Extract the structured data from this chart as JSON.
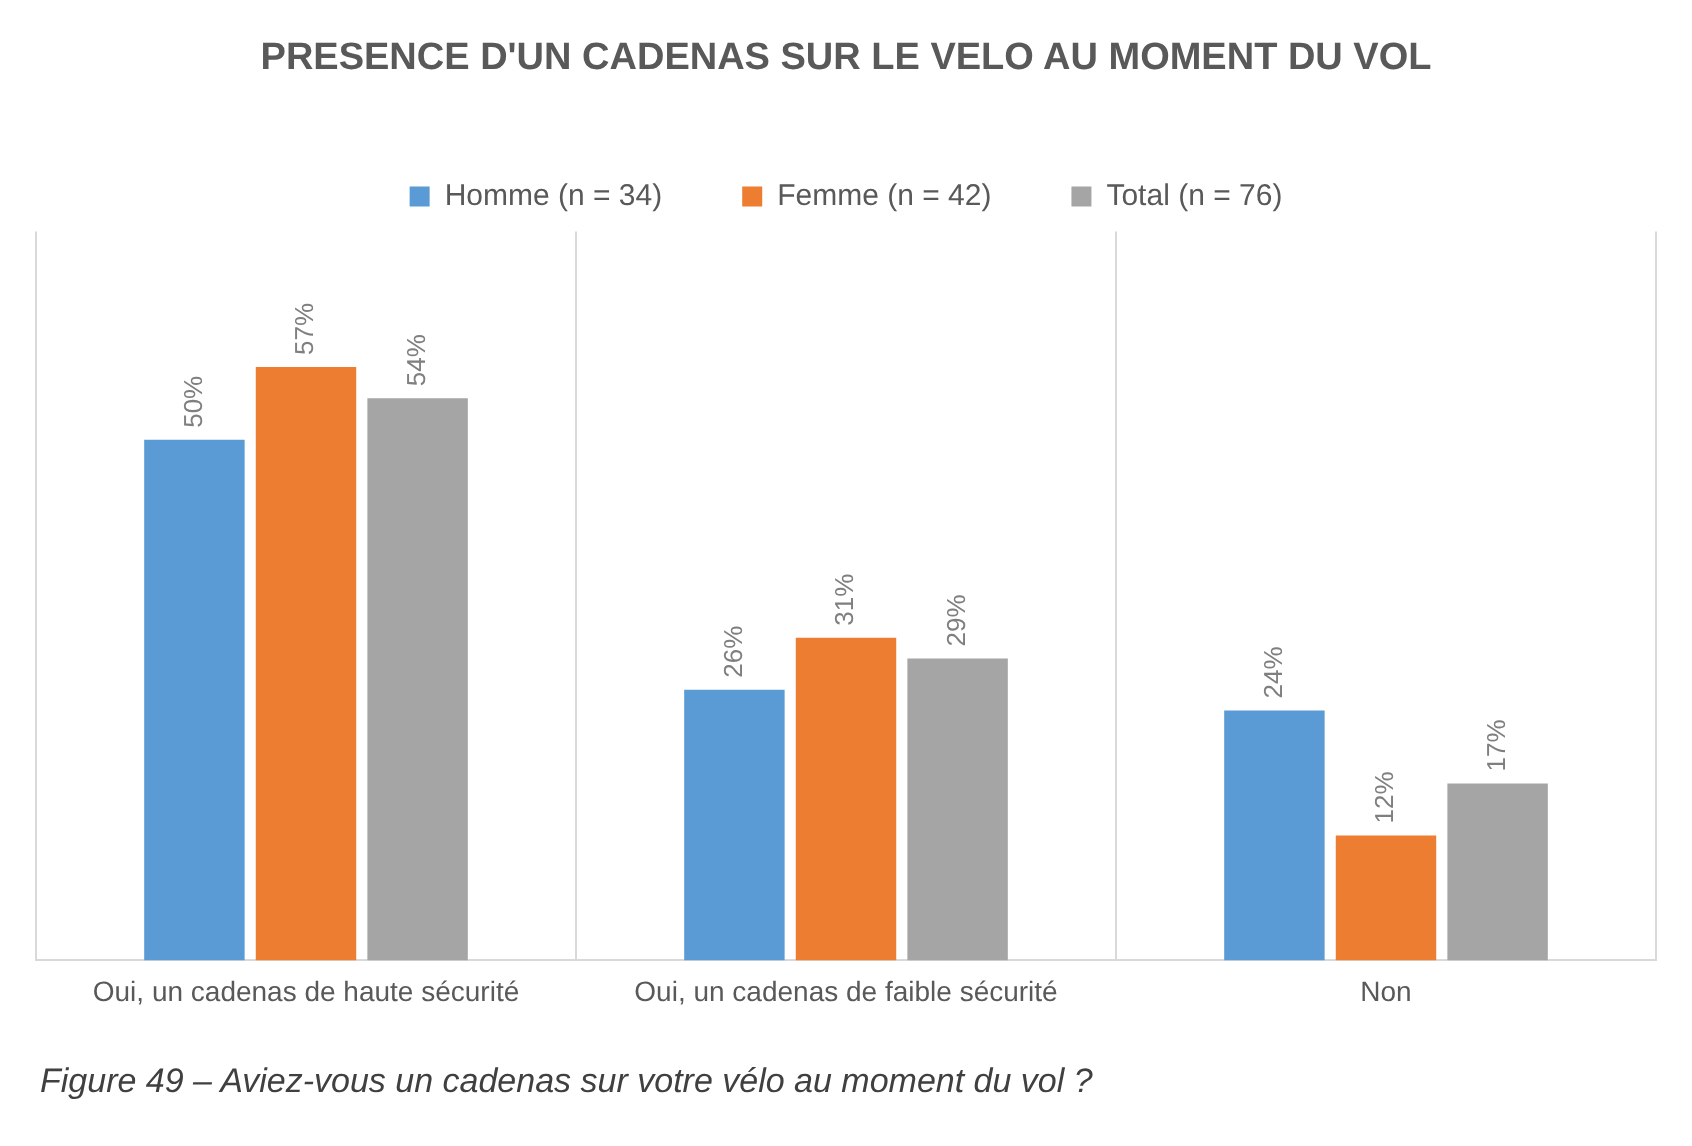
{
  "chart_data": {
    "type": "bar",
    "title": "PRESENCE D'UN CADENAS SUR LE VELO AU MOMENT DU VOL",
    "categories": [
      "Oui, un cadenas de haute sécurité",
      "Oui, un cadenas de faible sécurité",
      "Non"
    ],
    "series": [
      {
        "name": "Homme (n = 34)",
        "color": "#5b9bd5",
        "values": [
          50,
          26,
          24
        ],
        "value_labels": [
          "50%",
          "26%",
          "24%"
        ]
      },
      {
        "name": "Femme (n = 42)",
        "color": "#ed7d31",
        "values": [
          57,
          31,
          12
        ],
        "value_labels": [
          "57%",
          "31%",
          "12%"
        ]
      },
      {
        "name": "Total (n = 76)",
        "color": "#a5a5a5",
        "values": [
          54,
          29,
          17
        ],
        "value_labels": [
          "54%",
          "29%",
          "17%"
        ]
      }
    ],
    "grid": "x",
    "legend": "top",
    "tick_labels": "x",
    "annotations": [
      "Figure 49 – Aviez-vous un cadenas sur votre vélo au moment du vol ?"
    ]
  }
}
